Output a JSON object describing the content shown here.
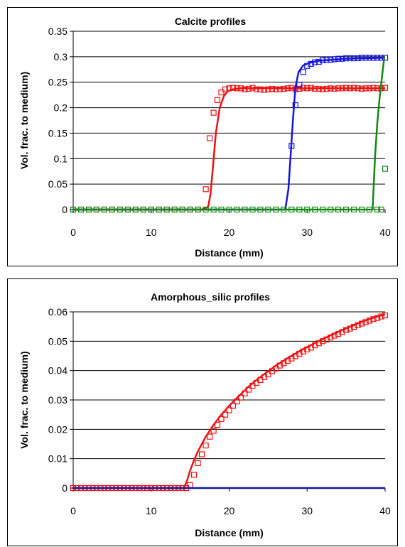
{
  "chart_data": [
    {
      "type": "line",
      "title": "Calcite profiles",
      "xlabel": "Distance (mm)",
      "ylabel": "Vol. frac. to medium)",
      "xlim": [
        0,
        40
      ],
      "ylim": [
        0,
        0.35
      ],
      "x_ticks": [
        "0",
        "10",
        "20",
        "30",
        "40"
      ],
      "y_ticks": [
        "0",
        "0.05",
        "0.1",
        "0.15",
        "0.2",
        "0.25",
        "0.3",
        "0.35"
      ],
      "grid": "horizontal",
      "legend": "none",
      "series": [
        {
          "color": "#ee1111",
          "style": "line",
          "x": [
            0,
            16.5,
            17.3,
            17.6,
            17.9,
            18.3,
            18.8,
            19.3,
            19.8,
            20.5,
            21.5,
            23,
            26,
            30,
            34,
            40
          ],
          "y": [
            0,
            0,
            0.005,
            0.03,
            0.08,
            0.15,
            0.2,
            0.222,
            0.232,
            0.236,
            0.238,
            0.238,
            0.238,
            0.238,
            0.238,
            0.238
          ]
        },
        {
          "color": "#ee1111",
          "style": "markers",
          "x": [
            0,
            1,
            2,
            3,
            4,
            5,
            6,
            7,
            8,
            9,
            10,
            11,
            12,
            13,
            14,
            15,
            16,
            17,
            17.5,
            18,
            18.5,
            19,
            19.5,
            20,
            20.5,
            21,
            21.5,
            22,
            22.5,
            23,
            23.5,
            24,
            24.5,
            25,
            25.5,
            26,
            26.5,
            27,
            27.5,
            28,
            28.5,
            29,
            29.5,
            30,
            30.5,
            31,
            31.5,
            32,
            32.5,
            33,
            33.5,
            34,
            34.5,
            35,
            35.5,
            36,
            36.5,
            37,
            37.5,
            38,
            38.5,
            39,
            39.5,
            40
          ],
          "y": [
            0,
            0,
            0,
            0,
            0,
            0,
            0,
            0,
            0,
            0,
            0,
            0,
            0,
            0,
            0,
            0,
            0,
            0.04,
            0.14,
            0.19,
            0.215,
            0.23,
            0.236,
            0.238,
            0.239,
            0.238,
            0.238,
            0.236,
            0.237,
            0.239,
            0.236,
            0.236,
            0.235,
            0.236,
            0.237,
            0.236,
            0.236,
            0.237,
            0.238,
            0.239,
            0.236,
            0.237,
            0.239,
            0.238,
            0.239,
            0.237,
            0.237,
            0.236,
            0.237,
            0.238,
            0.237,
            0.238,
            0.238,
            0.239,
            0.238,
            0.239,
            0.238,
            0.237,
            0.238,
            0.238,
            0.239,
            0.238,
            0.238,
            0.239
          ]
        },
        {
          "color": "#1515dd",
          "style": "line",
          "x": [
            0,
            27.2,
            27.6,
            27.9,
            28.2,
            28.5,
            28.9,
            29.5,
            30.3,
            31.5,
            33,
            35,
            37,
            40
          ],
          "y": [
            0,
            0,
            0.04,
            0.11,
            0.18,
            0.24,
            0.27,
            0.283,
            0.288,
            0.292,
            0.294,
            0.296,
            0.297,
            0.298
          ]
        },
        {
          "color": "#1515dd",
          "style": "markers",
          "x": [
            28,
            28.5,
            29,
            29.5,
            30,
            30.5,
            31,
            31.5,
            32,
            32.5,
            33,
            33.5,
            34,
            34.5,
            35,
            35.5,
            36,
            36.5,
            37,
            37.5,
            38,
            38.5,
            39,
            39.5,
            40
          ],
          "y": [
            0.125,
            0.205,
            0.245,
            0.27,
            0.282,
            0.286,
            0.289,
            0.29,
            0.293,
            0.294,
            0.294,
            0.295,
            0.296,
            0.296,
            0.297,
            0.297,
            0.297,
            0.297,
            0.298,
            0.298,
            0.298,
            0.298,
            0.298,
            0.298,
            0.298
          ]
        },
        {
          "color": "#118811",
          "style": "line",
          "x": [
            0,
            38.4,
            38.7,
            39,
            39.3,
            39.6,
            39.9
          ],
          "y": [
            0,
            0,
            0.1,
            0.17,
            0.22,
            0.26,
            0.3
          ]
        },
        {
          "color": "#118811",
          "style": "markers",
          "x": [
            0,
            1,
            2,
            3,
            4,
            5,
            6,
            7,
            8,
            9,
            10,
            11,
            12,
            13,
            14,
            15,
            16,
            17,
            18,
            19,
            20,
            21,
            22,
            23,
            24,
            25,
            26,
            27,
            28,
            29,
            30,
            31,
            32,
            33,
            34,
            35,
            36,
            37,
            38,
            39,
            39.5,
            40
          ],
          "y": [
            0,
            0,
            0,
            0,
            0,
            0,
            0,
            0,
            0,
            0,
            0,
            0,
            0,
            0,
            0,
            0,
            0,
            0,
            0,
            0,
            0,
            0,
            0,
            0,
            0,
            0,
            0,
            0,
            0,
            0,
            0,
            0,
            0,
            0,
            0,
            0,
            0,
            0,
            0,
            0,
            0,
            0.08
          ]
        }
      ]
    },
    {
      "type": "line",
      "title": "Amorphous_silic profiles",
      "xlabel": "Distance (mm)",
      "ylabel": "Vol. frac. to medium)",
      "xlim": [
        0,
        40
      ],
      "ylim": [
        0,
        0.06
      ],
      "x_ticks": [
        "0",
        "10",
        "20",
        "30",
        "40"
      ],
      "y_ticks": [
        "0",
        "0.01",
        "0.02",
        "0.03",
        "0.04",
        "0.05",
        "0.06"
      ],
      "grid": "horizontal",
      "legend": "none",
      "series": [
        {
          "color": "#ee1111",
          "style": "line",
          "x": [
            0,
            14.2,
            14.6,
            15,
            15.5,
            16,
            17,
            18,
            19,
            20,
            21,
            22,
            23,
            24,
            25,
            26,
            27,
            28,
            29,
            30,
            31,
            32,
            33,
            34,
            35,
            36,
            37,
            38,
            39,
            40
          ],
          "y": [
            0,
            0,
            0.0025,
            0.006,
            0.0095,
            0.0125,
            0.0175,
            0.0215,
            0.025,
            0.028,
            0.0307,
            0.0333,
            0.0357,
            0.0378,
            0.0398,
            0.0417,
            0.0434,
            0.045,
            0.0466,
            0.048,
            0.0494,
            0.0507,
            0.052,
            0.0532,
            0.0544,
            0.0555,
            0.0566,
            0.0576,
            0.0584,
            0.0592
          ]
        },
        {
          "color": "#ee1111",
          "style": "markers",
          "x": [
            0,
            0.5,
            1,
            1.5,
            2,
            2.5,
            3,
            3.5,
            4,
            4.5,
            5,
            5.5,
            6,
            6.5,
            7,
            7.5,
            8,
            8.5,
            9,
            9.5,
            10,
            10.5,
            11,
            11.5,
            12,
            12.5,
            13,
            13.5,
            14,
            14.5,
            15,
            15.5,
            16,
            16.5,
            17,
            17.5,
            18,
            18.5,
            19,
            19.5,
            20,
            20.5,
            21,
            21.5,
            22,
            22.5,
            23,
            23.5,
            24,
            24.5,
            25,
            25.5,
            26,
            26.5,
            27,
            27.5,
            28,
            28.5,
            29,
            29.5,
            30,
            30.5,
            31,
            31.5,
            32,
            32.5,
            33,
            33.5,
            34,
            34.5,
            35,
            35.5,
            36,
            36.5,
            37,
            37.5,
            38,
            38.5,
            39,
            39.5,
            40
          ],
          "y": [
            0,
            0,
            0,
            0,
            0,
            0,
            0,
            0,
            0,
            0,
            0,
            0,
            0,
            0,
            0,
            0,
            0,
            0,
            0,
            0,
            0,
            0,
            0,
            0,
            0,
            0,
            0,
            0,
            0,
            0,
            0.001,
            0.0045,
            0.0085,
            0.0115,
            0.0145,
            0.0175,
            0.0195,
            0.0215,
            0.0235,
            0.025,
            0.0265,
            0.028,
            0.0295,
            0.0308,
            0.0322,
            0.0335,
            0.0348,
            0.0358,
            0.0368,
            0.0378,
            0.0387,
            0.0398,
            0.0407,
            0.0417,
            0.0425,
            0.0433,
            0.0441,
            0.0449,
            0.0457,
            0.0465,
            0.0472,
            0.0478,
            0.0486,
            0.0493,
            0.05,
            0.0506,
            0.0513,
            0.0519,
            0.0525,
            0.0531,
            0.0538,
            0.0543,
            0.0549,
            0.0555,
            0.056,
            0.0565,
            0.057,
            0.0575,
            0.0579,
            0.0584,
            0.0588
          ]
        },
        {
          "color": "#1515aa",
          "style": "line",
          "x": [
            0,
            40
          ],
          "y": [
            0,
            0
          ]
        }
      ]
    }
  ]
}
